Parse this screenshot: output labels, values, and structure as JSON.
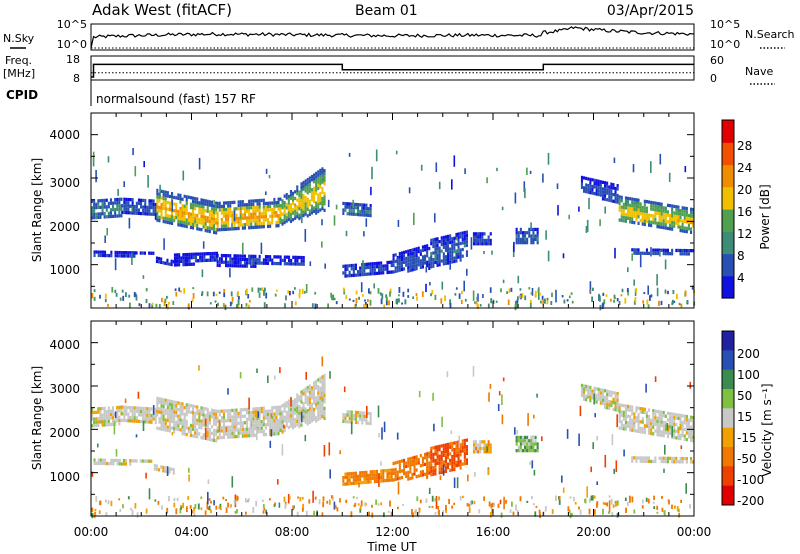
{
  "header": {
    "station": "Adak West (fitACF)",
    "beam": "Beam 01",
    "date": "03/Apr/2015"
  },
  "nsky_panel": {
    "left_label": "N.Sky",
    "right_label": "N.Search",
    "left_ticks": [
      "10^5",
      "10^0"
    ],
    "right_ticks": [
      "10^5",
      "10^0"
    ]
  },
  "freq_panel": {
    "left_label_1": "Freq.",
    "left_label_2": "[MHz]",
    "left_ticks": [
      "18",
      "8"
    ],
    "right_label": "Nave",
    "right_ticks": [
      "60",
      "0"
    ]
  },
  "cpid_panel": {
    "label": "CPID",
    "program": "normalsound (fast) 157 RF"
  },
  "power_panel": {
    "ylabel": "Slant Range [km]",
    "yticks": [
      "4000",
      "3000",
      "2000",
      "1000"
    ],
    "colorbar_label": "Power [dB]",
    "colorbar_ticks": [
      "28",
      "24",
      "20",
      "16",
      "12",
      "8",
      "4"
    ]
  },
  "velocity_panel": {
    "ylabel": "Slant Range [km]",
    "yticks": [
      "4000",
      "3000",
      "2000",
      "1000"
    ],
    "colorbar_label": "Velocity [m s⁻¹]",
    "colorbar_ticks": [
      "200",
      "100",
      "50",
      "15",
      "-15",
      "-50",
      "-100",
      "-200"
    ]
  },
  "xaxis": {
    "label": "Time UT",
    "ticks": [
      "00:00",
      "04:00",
      "08:00",
      "12:00",
      "16:00",
      "20:00",
      "00:00"
    ]
  },
  "colors": {
    "power_scale": [
      "#1010e0",
      "#2850b4",
      "#3c8c78",
      "#50a050",
      "#f0c000",
      "#f08c00",
      "#f05000",
      "#e00000"
    ],
    "velocity_scale": [
      "#2020a0",
      "#2850b4",
      "#3c8c50",
      "#80c040",
      "#c8c8c8",
      "#f0a000",
      "#f07800",
      "#f04000",
      "#e00000"
    ]
  },
  "chart_data": [
    {
      "type": "line",
      "title": "N.Sky / N.Search",
      "x_unit": "hours UT",
      "y_scale": "log",
      "ylim": [
        1,
        100000
      ],
      "series": [
        {
          "name": "N.Sky",
          "x": [
            0,
            0.1,
            1,
            3,
            5,
            7,
            9,
            12,
            15,
            17.9,
            18,
            18.8,
            19.2,
            20,
            21,
            22,
            24
          ],
          "y": [
            1,
            300,
            500,
            1000,
            1500,
            1200,
            900,
            600,
            800,
            700,
            3000,
            10000,
            40000,
            15000,
            6000,
            3000,
            1500
          ]
        },
        {
          "name": "N.Search",
          "x": [
            0,
            6,
            12,
            18,
            24
          ],
          "y": [
            1,
            1,
            1,
            1,
            1
          ]
        }
      ]
    },
    {
      "type": "line",
      "title": "Freq. / Nave",
      "x_unit": "hours UT",
      "series": [
        {
          "name": "Freq. [MHz]",
          "x": [
            0,
            0.1,
            9.9,
            10,
            17.9,
            18,
            24
          ],
          "y": [
            8,
            15,
            15,
            12,
            12,
            15,
            15
          ]
        },
        {
          "name": "Nave",
          "x": [
            0,
            24
          ],
          "y": [
            14,
            14
          ]
        }
      ],
      "ylim": [
        8,
        18
      ],
      "y2lim": [
        0,
        60
      ]
    },
    {
      "type": "heatmap",
      "title": "Power [dB]",
      "x_unit": "hours UT",
      "y_unit": "km",
      "xlim": [
        0,
        24
      ],
      "ylim": [
        0,
        4500
      ],
      "color_range": [
        0,
        32
      ],
      "regions": [
        {
          "start": 0.0,
          "end": 1.2,
          "r_low": [
            2050,
            2150
          ],
          "r_high": [
            2500,
            2550
          ],
          "level": 9
        },
        {
          "start": 1.2,
          "end": 2.6,
          "r_low": [
            2200,
            2150
          ],
          "r_high": [
            2550,
            2500
          ],
          "level": 6
        },
        {
          "start": 2.6,
          "end": 5.0,
          "r_low": [
            2050,
            1750
          ],
          "r_high": [
            2750,
            2450
          ],
          "level": 20
        },
        {
          "start": 5.0,
          "end": 7.5,
          "r_low": [
            1800,
            1900
          ],
          "r_high": [
            2450,
            2550
          ],
          "level": 21
        },
        {
          "start": 7.5,
          "end": 9.3,
          "r_low": [
            1950,
            2300
          ],
          "r_high": [
            2550,
            3300
          ],
          "level": 18
        },
        {
          "start": 0.1,
          "end": 2.5,
          "r_low": [
            1200,
            1250
          ],
          "r_high": [
            1330,
            1300
          ],
          "level": 5
        },
        {
          "start": 2.5,
          "end": 3.3,
          "r_low": [
            1100,
            1000
          ],
          "r_high": [
            1200,
            1100
          ],
          "level": 4
        },
        {
          "start": 3.3,
          "end": 5.0,
          "r_low": [
            1020,
            1080
          ],
          "r_high": [
            1260,
            1300
          ],
          "level": 4
        },
        {
          "start": 5.0,
          "end": 8.5,
          "r_low": [
            1000,
            1000
          ],
          "r_high": [
            1250,
            1200
          ],
          "level": 4
        },
        {
          "start": 10.0,
          "end": 11.1,
          "r_low": [
            2150,
            2150
          ],
          "r_high": [
            2450,
            2400
          ],
          "level": 9
        },
        {
          "start": 10.0,
          "end": 12.0,
          "r_low": [
            700,
            850
          ],
          "r_high": [
            1000,
            1100
          ],
          "level": 5
        },
        {
          "start": 12.0,
          "end": 13.5,
          "r_low": [
            850,
            950
          ],
          "r_high": [
            1250,
            1500
          ],
          "level": 6
        },
        {
          "start": 13.5,
          "end": 15.0,
          "r_low": [
            950,
            1200
          ],
          "r_high": [
            1600,
            1800
          ],
          "level": 7
        },
        {
          "start": 15.2,
          "end": 15.9,
          "r_low": [
            1500,
            1500
          ],
          "r_high": [
            1750,
            1750
          ],
          "level": 6
        },
        {
          "start": 16.9,
          "end": 17.8,
          "r_low": [
            1500,
            1500
          ],
          "r_high": [
            1850,
            1850
          ],
          "level": 7
        },
        {
          "start": 19.5,
          "end": 21.0,
          "r_low": [
            2750,
            2400
          ],
          "r_high": [
            3050,
            2850
          ],
          "level": 6
        },
        {
          "start": 21.0,
          "end": 24.0,
          "r_low": [
            2000,
            1750
          ],
          "r_high": [
            2600,
            2300
          ],
          "level": 18
        },
        {
          "start": 21.5,
          "end": 24.0,
          "r_low": [
            1250,
            1250
          ],
          "r_high": [
            1380,
            1360
          ],
          "level": 6
        }
      ]
    },
    {
      "type": "heatmap",
      "title": "Velocity [m s⁻¹]",
      "x_unit": "hours UT",
      "y_unit": "km",
      "xlim": [
        0,
        24
      ],
      "ylim": [
        0,
        4500
      ],
      "color_range": [
        -250,
        250
      ],
      "regions": [
        {
          "start": 0.0,
          "end": 1.2,
          "r_low": [
            2050,
            2150
          ],
          "r_high": [
            2500,
            2550
          ],
          "level": 0
        },
        {
          "start": 1.2,
          "end": 2.6,
          "r_low": [
            2200,
            2150
          ],
          "r_high": [
            2550,
            2500
          ],
          "level": 0
        },
        {
          "start": 2.6,
          "end": 5.0,
          "r_low": [
            2050,
            1750
          ],
          "r_high": [
            2750,
            2450
          ],
          "level": 0
        },
        {
          "start": 5.0,
          "end": 7.5,
          "r_low": [
            1800,
            1900
          ],
          "r_high": [
            2450,
            2550
          ],
          "level": 0
        },
        {
          "start": 7.5,
          "end": 9.3,
          "r_low": [
            1950,
            2300
          ],
          "r_high": [
            2550,
            3300
          ],
          "level": 0
        },
        {
          "start": 0.1,
          "end": 2.5,
          "r_low": [
            1200,
            1250
          ],
          "r_high": [
            1330,
            1300
          ],
          "level": 0
        },
        {
          "start": 2.5,
          "end": 3.3,
          "r_low": [
            1100,
            1000
          ],
          "r_high": [
            1200,
            1100
          ],
          "level": 0
        },
        {
          "start": 10.0,
          "end": 11.1,
          "r_low": [
            2150,
            2150
          ],
          "r_high": [
            2450,
            2400
          ],
          "level": 0
        },
        {
          "start": 10.0,
          "end": 12.0,
          "r_low": [
            700,
            850
          ],
          "r_high": [
            1000,
            1100
          ],
          "level": -40
        },
        {
          "start": 12.0,
          "end": 13.5,
          "r_low": [
            850,
            950
          ],
          "r_high": [
            1250,
            1500
          ],
          "level": -60
        },
        {
          "start": 13.5,
          "end": 15.0,
          "r_low": [
            950,
            1200
          ],
          "r_high": [
            1600,
            1800
          ],
          "level": -80
        },
        {
          "start": 15.2,
          "end": 15.9,
          "r_low": [
            1500,
            1500
          ],
          "r_high": [
            1750,
            1750
          ],
          "level": -20
        },
        {
          "start": 16.9,
          "end": 17.8,
          "r_low": [
            1500,
            1500
          ],
          "r_high": [
            1850,
            1850
          ],
          "level": 30
        },
        {
          "start": 19.5,
          "end": 21.0,
          "r_low": [
            2750,
            2400
          ],
          "r_high": [
            3050,
            2850
          ],
          "level": 0
        },
        {
          "start": 21.0,
          "end": 24.0,
          "r_low": [
            2000,
            1750
          ],
          "r_high": [
            2600,
            2300
          ],
          "level": 0
        },
        {
          "start": 21.5,
          "end": 24.0,
          "r_low": [
            1250,
            1250
          ],
          "r_high": [
            1380,
            1360
          ],
          "level": 0
        }
      ]
    }
  ]
}
